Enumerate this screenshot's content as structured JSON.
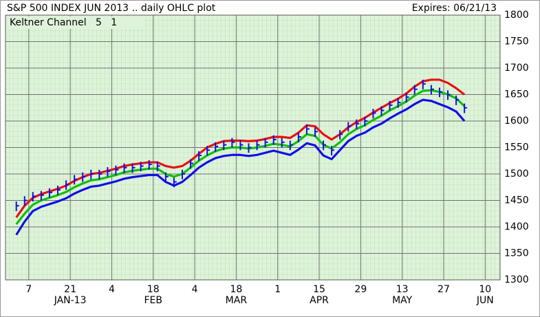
{
  "chart_data": {
    "type": "ohlc",
    "title": "S&P 500 INDEX JUN 2013 .. daily OHLC plot",
    "expires": "Expires: 06/21/13",
    "legend_label": "Keltner Channel   5   1",
    "xlim": [
      -2.6,
      116.6
    ],
    "ylim": [
      1300,
      1800
    ],
    "yticks": [
      1300,
      1350,
      1400,
      1450,
      1500,
      1550,
      1600,
      1650,
      1700,
      1750,
      1800
    ],
    "xticks": [
      {
        "value": 3,
        "label": "7"
      },
      {
        "value": 13,
        "label": "21"
      },
      {
        "value": 23,
        "label": "4"
      },
      {
        "value": 33,
        "label": "18"
      },
      {
        "value": 43,
        "label": "4"
      },
      {
        "value": 53,
        "label": "18"
      },
      {
        "value": 63,
        "label": "1"
      },
      {
        "value": 73,
        "label": "15"
      },
      {
        "value": 83,
        "label": "29"
      },
      {
        "value": 93,
        "label": "13"
      },
      {
        "value": 103,
        "label": "27"
      },
      {
        "value": 113,
        "label": "10"
      }
    ],
    "month_labels": [
      {
        "value": 13,
        "label": "JAN-13"
      },
      {
        "value": 33,
        "label": "FEB"
      },
      {
        "value": 53,
        "label": "MAR"
      },
      {
        "value": 73,
        "label": "APR"
      },
      {
        "value": 93,
        "label": "MAY"
      },
      {
        "value": 113,
        "label": "JUN"
      }
    ],
    "grid": true,
    "x": [
      0,
      2,
      4,
      6,
      8,
      10,
      12,
      14,
      16,
      18,
      20,
      22,
      24,
      26,
      28,
      30,
      32,
      34,
      36,
      38,
      40,
      42,
      44,
      46,
      48,
      50,
      52,
      54,
      56,
      58,
      60,
      62,
      64,
      66,
      68,
      70,
      72,
      74,
      76,
      78,
      80,
      82,
      84,
      86,
      88,
      90,
      92,
      94,
      96,
      98,
      100,
      102,
      104,
      106,
      108
    ],
    "bar_color": "#1010e0",
    "high": [
      1448,
      1458,
      1466,
      1468,
      1473,
      1478,
      1488,
      1498,
      1503,
      1508,
      1508,
      1513,
      1516,
      1520,
      1520,
      1523,
      1526,
      1523,
      1503,
      1493,
      1508,
      1528,
      1543,
      1553,
      1560,
      1563,
      1568,
      1563,
      1558,
      1563,
      1568,
      1573,
      1568,
      1563,
      1578,
      1593,
      1588,
      1563,
      1553,
      1583,
      1598,
      1603,
      1608,
      1623,
      1628,
      1638,
      1643,
      1653,
      1668,
      1678,
      1668,
      1663,
      1658,
      1648,
      1633
    ],
    "low": [
      1430,
      1440,
      1448,
      1450,
      1455,
      1460,
      1470,
      1480,
      1485,
      1490,
      1490,
      1495,
      1498,
      1502,
      1502,
      1505,
      1508,
      1505,
      1485,
      1475,
      1490,
      1510,
      1525,
      1535,
      1542,
      1545,
      1550,
      1545,
      1540,
      1545,
      1550,
      1555,
      1550,
      1545,
      1560,
      1575,
      1570,
      1545,
      1535,
      1565,
      1580,
      1585,
      1590,
      1605,
      1610,
      1620,
      1625,
      1635,
      1650,
      1660,
      1650,
      1645,
      1640,
      1630,
      1615
    ],
    "close": [
      1440,
      1450,
      1458,
      1460,
      1465,
      1470,
      1480,
      1490,
      1495,
      1500,
      1500,
      1505,
      1508,
      1512,
      1512,
      1515,
      1518,
      1515,
      1495,
      1485,
      1500,
      1520,
      1535,
      1545,
      1552,
      1555,
      1560,
      1555,
      1550,
      1555,
      1560,
      1565,
      1560,
      1555,
      1570,
      1585,
      1580,
      1555,
      1545,
      1575,
      1590,
      1595,
      1600,
      1615,
      1620,
      1630,
      1635,
      1645,
      1660,
      1670,
      1660,
      1655,
      1650,
      1640,
      1625
    ],
    "series": [
      {
        "color": "#e81010",
        "values": [
          1418,
          1440,
          1455,
          1462,
          1467,
          1472,
          1478,
          1487,
          1494,
          1500,
          1502,
          1506,
          1510,
          1515,
          1518,
          1520,
          1522,
          1522,
          1515,
          1512,
          1515,
          1525,
          1538,
          1550,
          1557,
          1562,
          1563,
          1563,
          1562,
          1563,
          1566,
          1570,
          1570,
          1568,
          1578,
          1592,
          1590,
          1575,
          1565,
          1575,
          1588,
          1598,
          1606,
          1616,
          1625,
          1634,
          1642,
          1652,
          1665,
          1675,
          1678,
          1678,
          1672,
          1662,
          1650
        ]
      },
      {
        "color": "#10c010",
        "values": [
          1405,
          1425,
          1442,
          1450,
          1455,
          1460,
          1466,
          1475,
          1482,
          1488,
          1490,
          1494,
          1498,
          1503,
          1506,
          1508,
          1510,
          1510,
          1500,
          1495,
          1500,
          1512,
          1525,
          1535,
          1543,
          1548,
          1550,
          1550,
          1548,
          1550,
          1553,
          1557,
          1555,
          1552,
          1562,
          1575,
          1572,
          1555,
          1548,
          1560,
          1575,
          1585,
          1592,
          1602,
          1610,
          1620,
          1628,
          1637,
          1648,
          1657,
          1658,
          1655,
          1650,
          1643,
          1628
        ]
      },
      {
        "color": "#1010e8",
        "values": [
          1385,
          1410,
          1430,
          1438,
          1443,
          1448,
          1454,
          1463,
          1470,
          1476,
          1478,
          1482,
          1486,
          1491,
          1494,
          1496,
          1498,
          1498,
          1485,
          1478,
          1485,
          1498,
          1512,
          1522,
          1530,
          1534,
          1536,
          1536,
          1534,
          1536,
          1540,
          1544,
          1540,
          1536,
          1546,
          1558,
          1554,
          1535,
          1528,
          1545,
          1562,
          1572,
          1578,
          1588,
          1595,
          1605,
          1614,
          1622,
          1632,
          1640,
          1638,
          1632,
          1626,
          1618,
          1600
        ]
      }
    ]
  }
}
